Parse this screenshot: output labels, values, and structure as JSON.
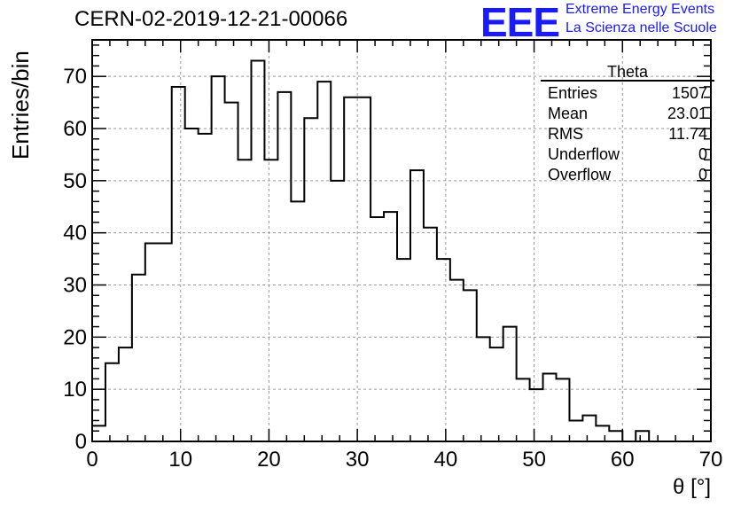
{
  "title": "CERN-02-2019-12-21-00066",
  "logo": {
    "mark": "EEE",
    "line1": "Extreme Energy Events",
    "line2": "La Scienza nelle Scuole",
    "color": "#1a1aff"
  },
  "stats": {
    "name": "Theta",
    "rows": [
      {
        "label": "Entries",
        "value": "1507"
      },
      {
        "label": "Mean",
        "value": "23.01"
      },
      {
        "label": "RMS",
        "value": "11.74"
      },
      {
        "label": "Underflow",
        "value": "0"
      },
      {
        "label": "Overflow",
        "value": "0"
      }
    ]
  },
  "chart_data": {
    "type": "bar",
    "style": "step-histogram",
    "xlabel": "θ [°]",
    "ylabel": "Entries/bin",
    "xlim": [
      0,
      70
    ],
    "ylim": [
      0,
      77
    ],
    "bin_width": 1.5,
    "x_ticks": [
      0,
      10,
      20,
      30,
      40,
      50,
      60,
      70
    ],
    "y_ticks": [
      0,
      10,
      20,
      30,
      40,
      50,
      60,
      70
    ],
    "grid": true,
    "values": [
      3,
      15,
      18,
      32,
      38,
      38,
      68,
      60,
      59,
      70,
      65,
      54,
      73,
      54,
      67,
      46,
      62,
      69,
      50,
      66,
      66,
      43,
      44,
      35,
      52,
      41,
      35,
      31,
      29,
      20,
      18,
      22,
      12,
      10,
      13,
      12,
      4,
      5,
      3,
      2,
      0,
      2,
      0,
      0,
      0,
      0,
      0
    ]
  }
}
